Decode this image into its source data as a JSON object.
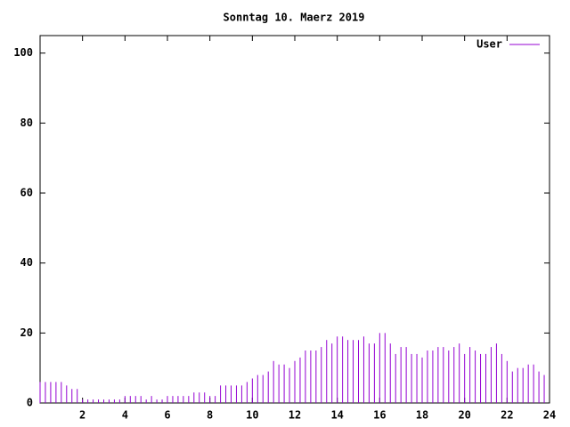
{
  "chart_data": {
    "type": "impulse",
    "title": "Sonntag 10. Maerz 2019",
    "x": [
      0,
      0.25,
      0.5,
      0.75,
      1,
      1.25,
      1.5,
      1.75,
      2,
      2.25,
      2.5,
      2.75,
      3,
      3.25,
      3.5,
      3.75,
      4,
      4.25,
      4.5,
      4.75,
      5,
      5.25,
      5.5,
      5.75,
      6,
      6.25,
      6.5,
      6.75,
      7,
      7.25,
      7.5,
      7.75,
      8,
      8.25,
      8.5,
      8.75,
      9,
      9.25,
      9.5,
      9.75,
      10,
      10.25,
      10.5,
      10.75,
      11,
      11.25,
      11.5,
      11.75,
      12,
      12.25,
      12.5,
      12.75,
      13,
      13.25,
      13.5,
      13.75,
      14,
      14.25,
      14.5,
      14.75,
      15,
      15.25,
      15.5,
      15.75,
      16,
      16.25,
      16.5,
      16.75,
      17,
      17.25,
      17.5,
      17.75,
      18,
      18.25,
      18.5,
      18.75,
      19,
      19.25,
      19.5,
      19.75,
      20,
      20.25,
      20.5,
      20.75,
      21,
      21.25,
      21.5,
      21.75,
      22,
      22.25,
      22.5,
      22.75,
      23,
      23.25,
      23.5,
      23.75
    ],
    "series": [
      {
        "name": "User",
        "color": "#9400d3",
        "values": [
          6,
          6,
          6,
          6,
          6,
          5,
          4,
          4,
          1,
          1,
          1,
          1,
          1,
          1,
          1,
          1,
          2,
          2,
          2,
          2,
          1,
          2,
          1,
          1,
          2,
          2,
          2,
          2,
          2,
          3,
          3,
          3,
          2,
          2,
          5,
          5,
          5,
          5,
          5,
          6,
          7,
          8,
          8,
          9,
          12,
          11,
          11,
          10,
          12,
          13,
          15,
          15,
          15,
          16,
          18,
          17,
          19,
          19,
          18,
          18,
          18,
          19,
          17,
          17,
          20,
          20,
          17,
          14,
          16,
          16,
          14,
          14,
          13,
          15,
          15,
          16,
          16,
          15,
          16,
          17,
          14,
          16,
          15,
          14,
          14,
          16,
          17,
          14,
          12,
          9,
          10,
          10,
          11,
          11,
          9,
          8
        ]
      }
    ],
    "xlim": [
      0,
      24
    ],
    "xticks": [
      2,
      4,
      6,
      8,
      10,
      12,
      14,
      16,
      18,
      20,
      22,
      24
    ],
    "ylim": [
      0,
      105
    ],
    "yticks": [
      0,
      20,
      40,
      60,
      80,
      100
    ],
    "legend": "upper right"
  }
}
